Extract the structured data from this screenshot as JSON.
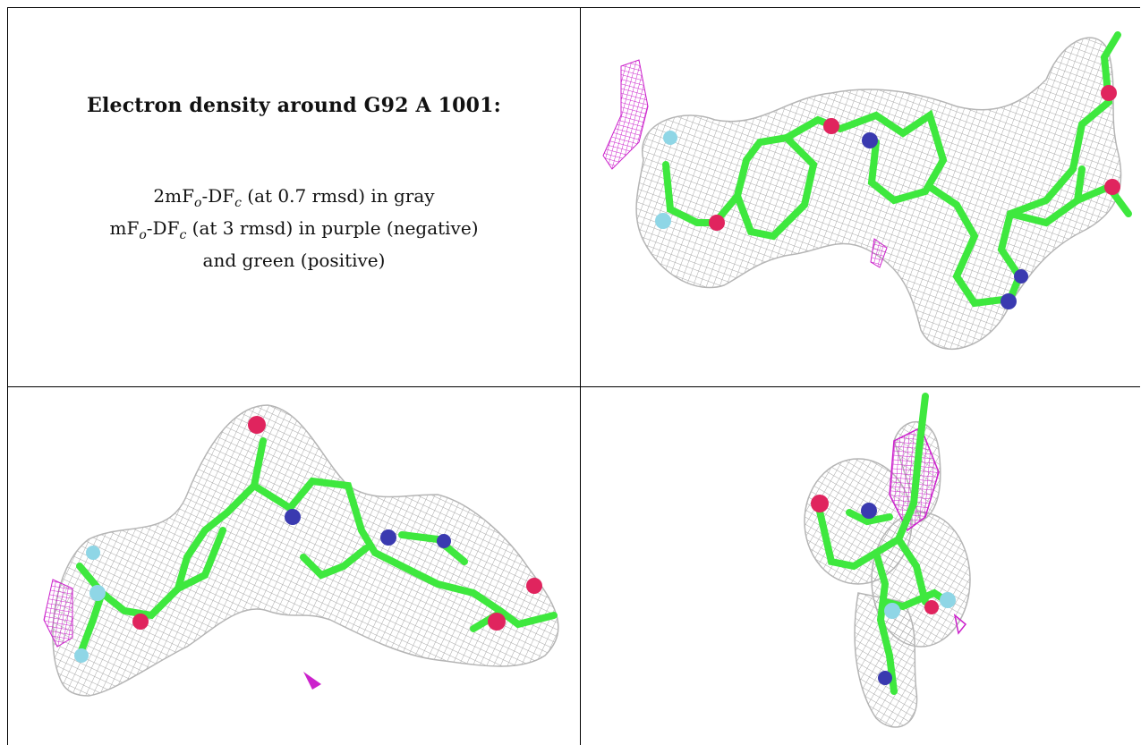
{
  "caption": {
    "title": "Electron density around G92 A 1001:",
    "line1": {
      "a": "2mF",
      "o": "o",
      "b": "-DF",
      "c": "c",
      "rest": " (at 0.7 rmsd) in gray"
    },
    "line2": {
      "a": "mF",
      "o": "o",
      "b": "-DF",
      "c": "c",
      "rest": " (at 3 rmsd) in purple (negative)"
    },
    "line3": "and green (positive)"
  },
  "colors": {
    "mesh": "#a8a8a8",
    "carbon": "#3ee83e",
    "oxygen": "#e0245e",
    "nitrogen": "#3a3ab0",
    "fluorine": "#8fd6e6",
    "negative": "#cc22cc"
  },
  "panels": [
    {
      "view": "top-right",
      "icon": "ligand-density-view-1"
    },
    {
      "view": "bottom-left",
      "icon": "ligand-density-view-2"
    },
    {
      "view": "bottom-right",
      "icon": "ligand-density-view-3"
    }
  ]
}
